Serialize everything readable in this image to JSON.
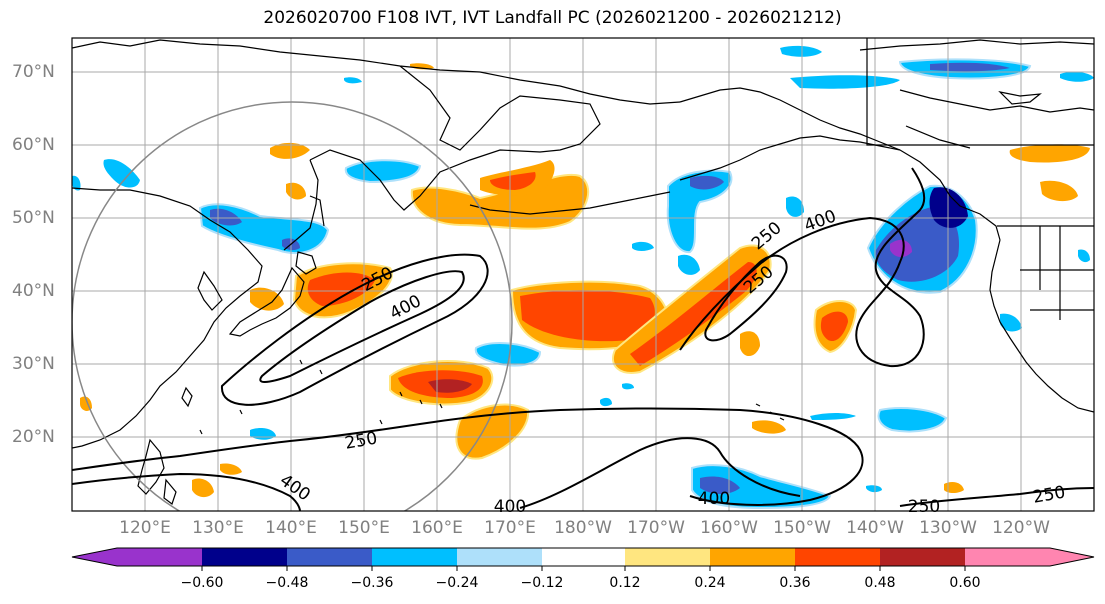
{
  "title": "2026020700 F108 IVT, IVT Landfall PC (2026021200 - 2026021212)",
  "map": {
    "lat_labels": [
      "70°N",
      "60°N",
      "50°N",
      "40°N",
      "30°N",
      "20°N"
    ],
    "lon_labels": [
      "120°E",
      "130°E",
      "140°E",
      "150°E",
      "160°E",
      "170°E",
      "180°W",
      "170°W",
      "160°W",
      "150°W",
      "140°W",
      "130°W",
      "120°W"
    ],
    "contour_labels": [
      "250",
      "400",
      "250",
      "400",
      "250",
      "400",
      "400",
      "250",
      "400",
      "250",
      "250"
    ]
  },
  "colorbar": {
    "tick_labels": [
      "−0.60",
      "−0.48",
      "−0.36",
      "−0.24",
      "−0.12",
      "0.12",
      "0.24",
      "0.36",
      "0.48",
      "0.60"
    ],
    "colors": [
      "#9933cc",
      "#00008b",
      "#3a5bc8",
      "#00bfff",
      "#aee0fa",
      "#ffffff",
      "#ffe680",
      "#ffa500",
      "#ff4500",
      "#b22222",
      "#ff85b0"
    ]
  }
}
